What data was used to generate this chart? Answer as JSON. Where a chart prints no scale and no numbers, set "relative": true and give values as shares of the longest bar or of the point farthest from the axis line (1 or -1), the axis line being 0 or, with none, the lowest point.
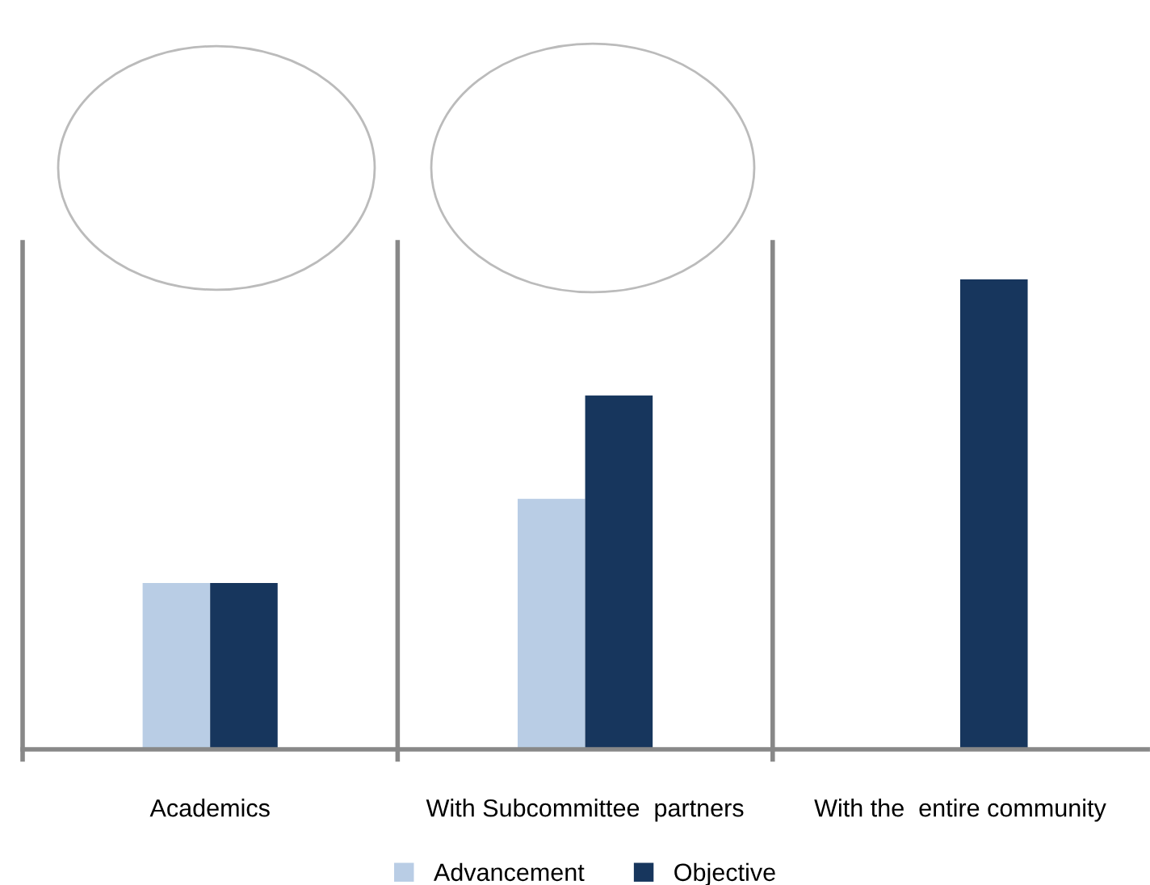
{
  "chart_data": {
    "type": "bar",
    "relative": true,
    "categories": [
      "Academics",
      "With Subcommittee  partners",
      "With the  entire community"
    ],
    "series": [
      {
        "name": "Advancement",
        "color": "#b9cde5",
        "values": [
          0.354,
          0.533,
          null
        ]
      },
      {
        "name": "Objective",
        "color": "#17365d",
        "values": [
          0.354,
          0.753,
          1
        ]
      }
    ],
    "legend": "bottom",
    "grid": false
  }
}
